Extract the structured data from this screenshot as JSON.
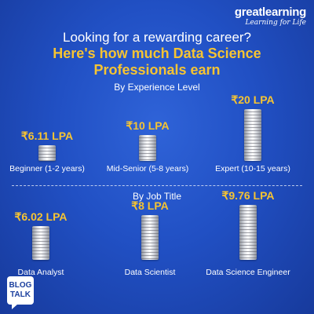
{
  "brand": {
    "name": "greatlearning",
    "tagline": "Learning for Life"
  },
  "headline": "Looking for a rewarding career?",
  "subheadline_line1": "Here's how much Data Science",
  "subheadline_line2": "Professionals earn",
  "badge": {
    "line1": "BLOG",
    "line2": "TALK"
  },
  "chart_data": [
    {
      "type": "bar",
      "title": "By Experience Level",
      "categories": [
        "Beginner (1-2 years)",
        "Mid-Senior (5-8 years)",
        "Expert (10-15 years)"
      ],
      "values": [
        6.11,
        10,
        20
      ],
      "value_labels": [
        "₹6.11 LPA",
        "₹10 LPA",
        "₹20 LPA"
      ],
      "unit": "LPA"
    },
    {
      "type": "bar",
      "title": "By Job Title",
      "categories": [
        "Data Analyst",
        "Data Scientist",
        "Data Science Engineer"
      ],
      "values": [
        6.02,
        8,
        9.76
      ],
      "value_labels": [
        "₹6.02 LPA",
        "₹8 LPA",
        "₹9.76 LPA"
      ],
      "unit": "LPA"
    }
  ],
  "colors": {
    "background": "#2150c4",
    "accent": "#f6c432",
    "text": "#ffffff"
  }
}
